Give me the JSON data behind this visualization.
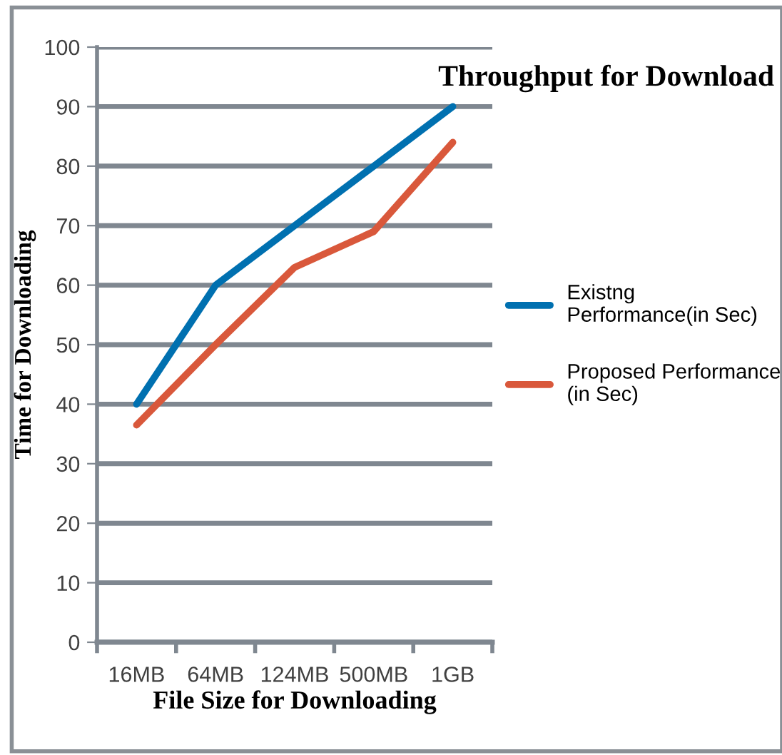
{
  "chart_data": {
    "type": "line",
    "title": "Throughput for Download",
    "xlabel": "File Size for Downloading",
    "ylabel": "Time for Downloading",
    "categories": [
      "16MB",
      "64MB",
      "124MB",
      "500MB",
      "1GB"
    ],
    "series": [
      {
        "name": "Existng Performance(in Sec)",
        "color": "#0070b0",
        "values": [
          40,
          60,
          70,
          80,
          90
        ]
      },
      {
        "name": "Proposed Performance (in Sec)",
        "color": "#d9583b",
        "values": [
          36.5,
          50,
          63,
          69,
          84
        ]
      }
    ],
    "ylim": [
      0,
      100
    ],
    "yticks": [
      0,
      10,
      20,
      30,
      40,
      50,
      60,
      70,
      80,
      90,
      100
    ],
    "grid": "y",
    "legend": "right",
    "marker": "none",
    "line_style": "solid"
  }
}
